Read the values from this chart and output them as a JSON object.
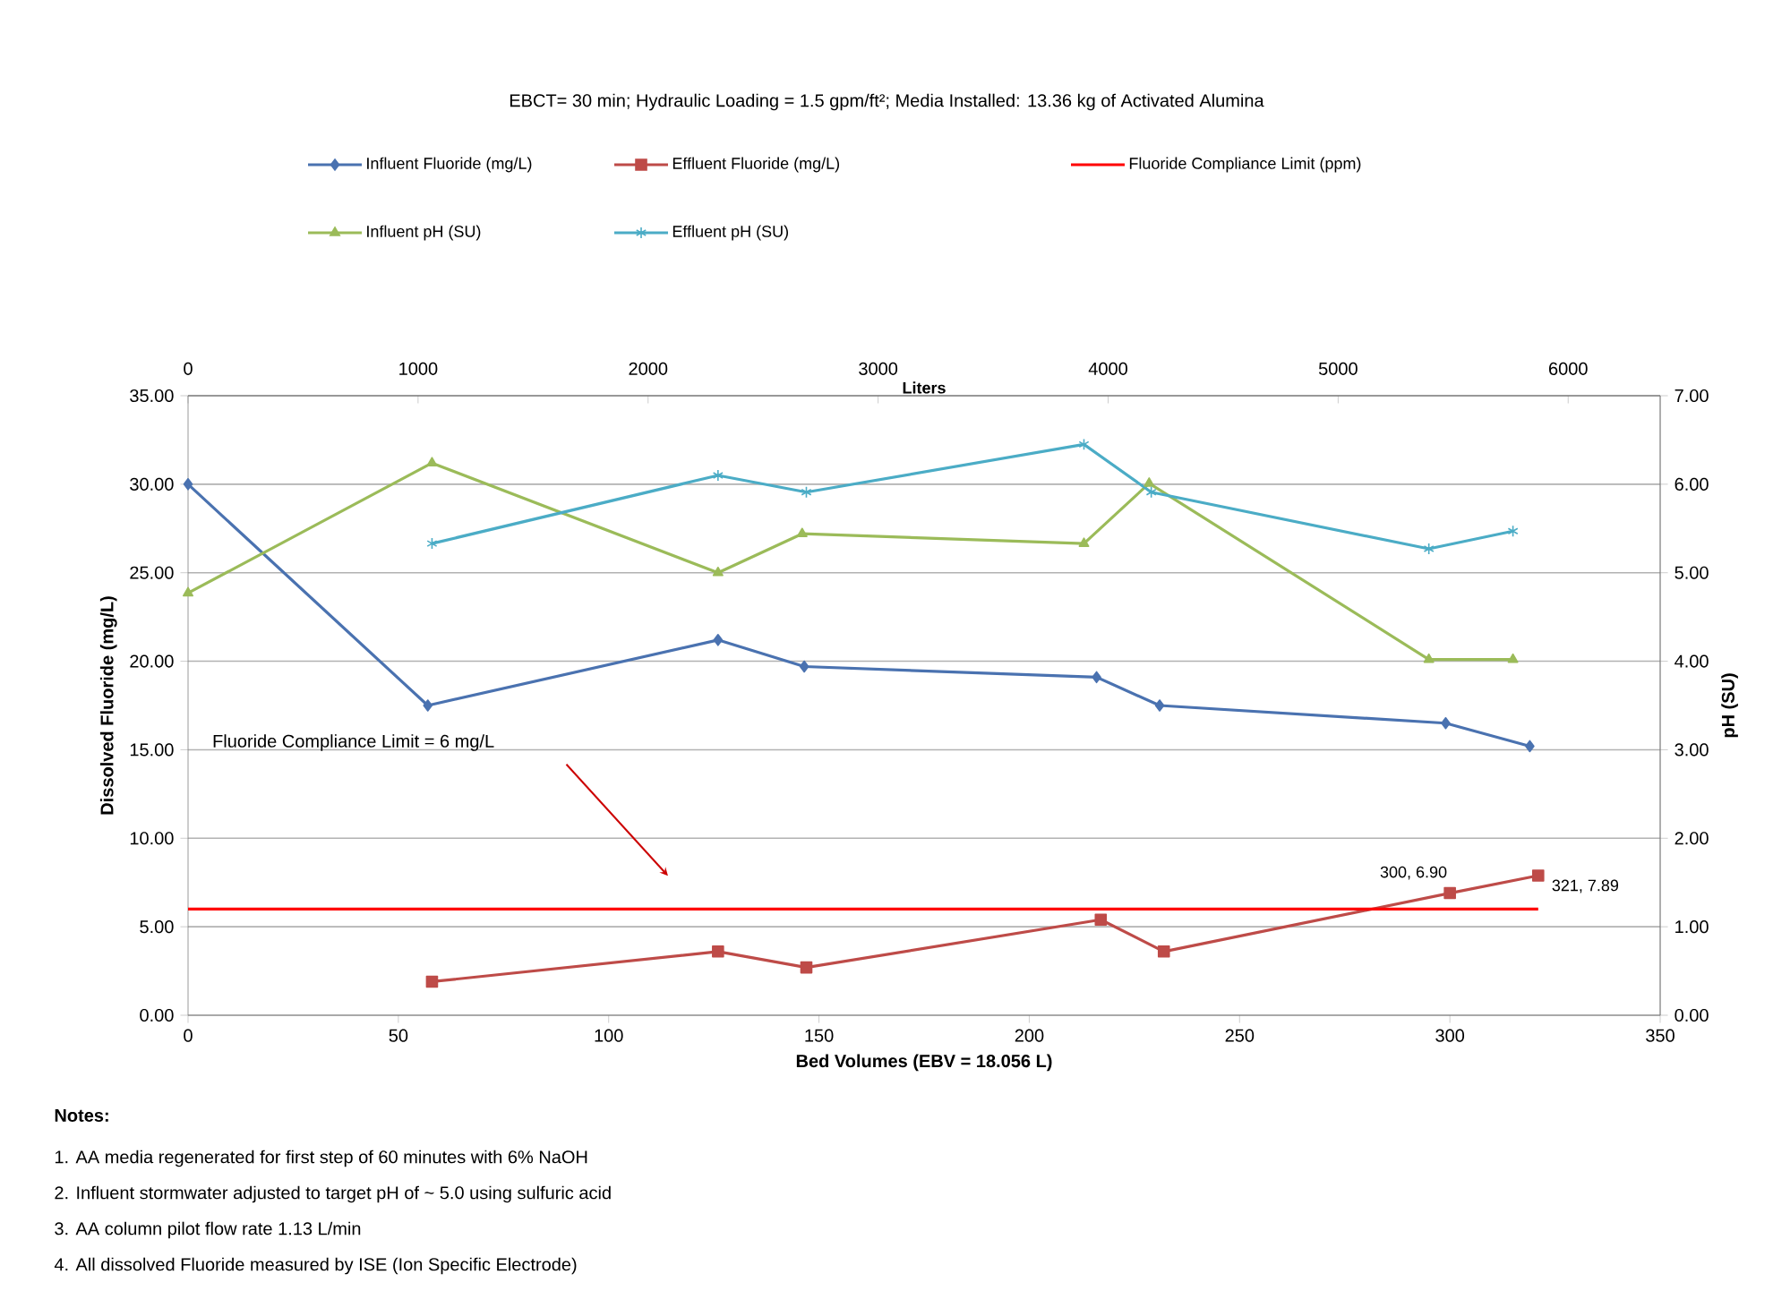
{
  "chart_data": {
    "type": "line",
    "title": "EBCT= 30 min; Hydraulic Loading =  1.5 gpm/ft²;  Media Installed:  13.36 kg of Activated Alumina",
    "xlabel": "Bed Volumes (EBV = 18.056  L)",
    "ylabel": "Dissolved Fluoride (mg/L)",
    "y2label": "pH (SU)",
    "x2label": "Liters",
    "series": [
      {
        "name": "Influent Fluoride (mg/L)",
        "color": "#4a72b0",
        "marker": "diamond",
        "x": [
          0,
          57,
          126,
          146.5,
          216,
          231,
          299,
          319
        ],
        "values": [
          30.0,
          17.5,
          21.2,
          19.7,
          19.1,
          17.5,
          16.5,
          15.2
        ]
      },
      {
        "name": "Effluent Fluoride (mg/L)",
        "color": "#be4b48",
        "marker": "square",
        "x": [
          58,
          126,
          147,
          217,
          232,
          300,
          321
        ],
        "values": [
          1.9,
          3.6,
          2.7,
          5.4,
          3.6,
          6.9,
          7.89
        ],
        "value_labels": [
          null,
          null,
          null,
          null,
          null,
          "300, 6.90",
          "321, 7.89"
        ]
      },
      {
        "name": "Fluoride Compliance Limit (ppm)",
        "color": "#ff0000",
        "marker": "none",
        "x": [
          0,
          321
        ],
        "values": [
          6,
          6
        ]
      },
      {
        "name": "Influent pH (SU)",
        "color": "#9bbb59",
        "marker": "triangle",
        "axis": "y2",
        "x": [
          0,
          58,
          126,
          146,
          213,
          228.5,
          295,
          315
        ],
        "values": [
          4.77,
          6.24,
          5.0,
          5.44,
          5.33,
          6.01,
          4.02,
          4.02
        ]
      },
      {
        "name": "Effluent pH (SU)",
        "color": "#4bacc6",
        "marker": "cross",
        "axis": "y2",
        "x": [
          58,
          126,
          147,
          213,
          229,
          295,
          315
        ],
        "values": [
          5.33,
          6.1,
          5.91,
          6.45,
          5.91,
          5.27,
          5.47
        ]
      }
    ],
    "xlim": [
      0,
      350
    ],
    "xticks": [
      0,
      50,
      100,
      150,
      200,
      250,
      300,
      350
    ],
    "ylim": [
      0,
      35
    ],
    "yticks": [
      {
        "value": 0,
        "label": "0.00"
      },
      {
        "value": 5,
        "label": "5.00"
      },
      {
        "value": 10,
        "label": "10.00"
      },
      {
        "value": 15,
        "label": "15.00"
      },
      {
        "value": 20,
        "label": "20.00"
      },
      {
        "value": 25,
        "label": "25.00"
      },
      {
        "value": 30,
        "label": "30.00"
      },
      {
        "value": 35,
        "label": "35.00"
      }
    ],
    "y2lim": [
      0,
      7
    ],
    "y2ticks": [
      {
        "value": 0,
        "label": "0.00"
      },
      {
        "value": 1,
        "label": "1.00"
      },
      {
        "value": 2,
        "label": "2.00"
      },
      {
        "value": 3,
        "label": "3.00"
      },
      {
        "value": 4,
        "label": "4.00"
      },
      {
        "value": 5,
        "label": "5.00"
      },
      {
        "value": 6,
        "label": "6.00"
      },
      {
        "value": 7,
        "label": "7.00"
      }
    ],
    "x2lim": [
      0,
      6400
    ],
    "x2ticks": [
      0,
      1000,
      2000,
      3000,
      4000,
      5000,
      6000
    ],
    "grid": "y",
    "legend": "top",
    "line_style": "solid",
    "annotations": [
      "Fluoride Compliance Limit = 6 mg/L",
      "Notes:",
      "1.  AA media regenerated for first step of 60 minutes with 6% NaOH",
      "2.  Influent stormwater adjusted to target pH of ~ 5.0 using sulfuric acid",
      "3.  AA column  pilot flow rate 1.13 L/min",
      "4.  All dissolved Fluoride measured by ISE (Ion Specific Electrode)"
    ]
  }
}
